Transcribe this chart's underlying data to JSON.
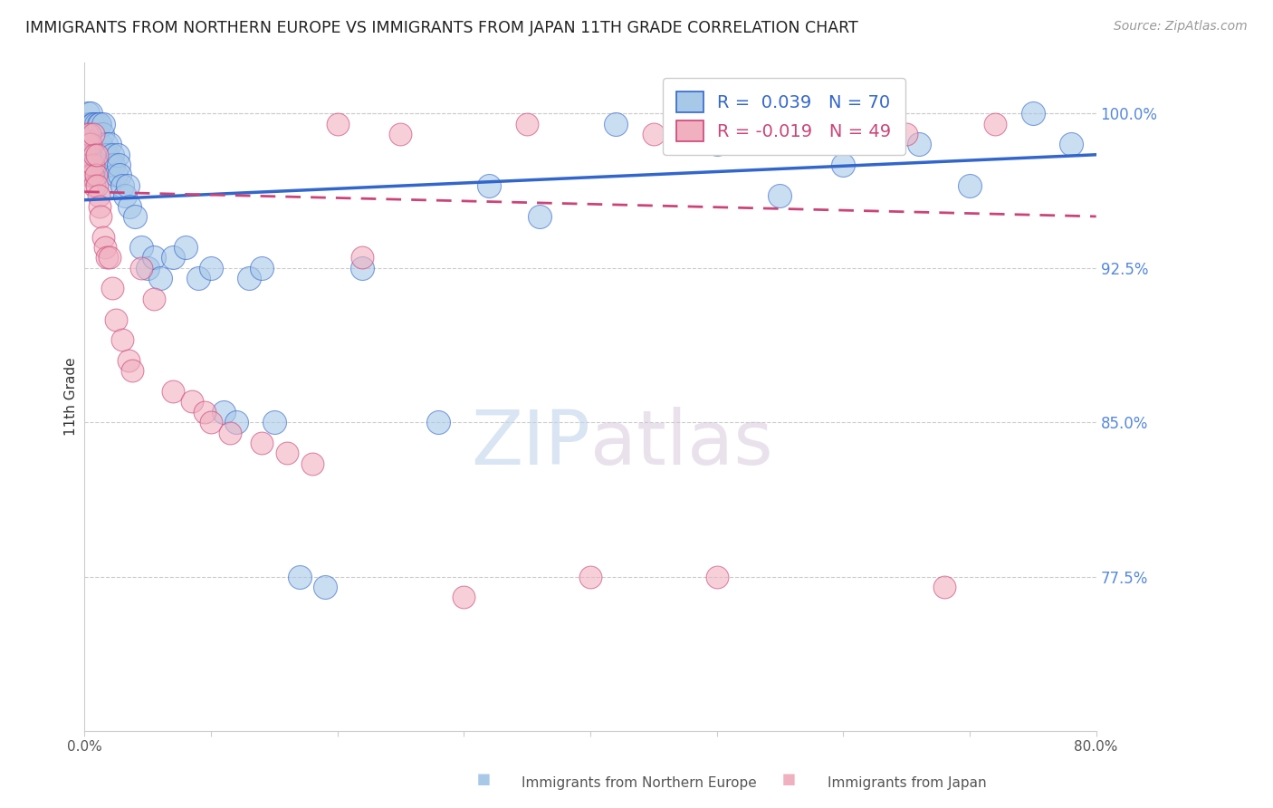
{
  "title": "IMMIGRANTS FROM NORTHERN EUROPE VS IMMIGRANTS FROM JAPAN 11TH GRADE CORRELATION CHART",
  "source": "Source: ZipAtlas.com",
  "ylabel": "11th Grade",
  "yticks": [
    100.0,
    92.5,
    85.0,
    77.5
  ],
  "ymin": 70.0,
  "ymax": 102.5,
  "xmin": 0.0,
  "xmax": 80.0,
  "blue_R": 0.039,
  "blue_N": 70,
  "pink_R": -0.019,
  "pink_N": 49,
  "blue_color": "#a8c8e8",
  "pink_color": "#f0b0c0",
  "trend_blue": "#3366cc",
  "trend_pink": "#cc4477",
  "legend_label_blue": "Immigrants from Northern Europe",
  "legend_label_pink": "Immigrants from Japan",
  "watermark_zip": "ZIP",
  "watermark_atlas": "atlas",
  "blue_x": [
    0.2,
    0.3,
    0.3,
    0.4,
    0.4,
    0.5,
    0.5,
    0.5,
    0.6,
    0.6,
    0.7,
    0.7,
    0.8,
    0.8,
    0.9,
    0.9,
    1.0,
    1.0,
    1.1,
    1.1,
    1.2,
    1.2,
    1.3,
    1.4,
    1.5,
    1.5,
    1.6,
    1.7,
    1.8,
    1.9,
    2.0,
    2.0,
    2.2,
    2.3,
    2.5,
    2.6,
    2.7,
    2.8,
    3.0,
    3.2,
    3.4,
    3.6,
    4.0,
    4.5,
    5.0,
    5.5,
    6.0,
    7.0,
    8.0,
    9.0,
    10.0,
    11.0,
    12.0,
    13.0,
    14.0,
    15.0,
    17.0,
    19.0,
    22.0,
    28.0,
    32.0,
    36.0,
    42.0,
    50.0,
    55.0,
    60.0,
    66.0,
    70.0,
    75.0,
    78.0
  ],
  "blue_y": [
    99.5,
    98.0,
    100.0,
    97.0,
    99.5,
    98.5,
    99.0,
    100.0,
    98.0,
    99.5,
    98.5,
    99.5,
    97.5,
    99.0,
    98.0,
    99.5,
    98.5,
    99.0,
    98.0,
    99.5,
    98.5,
    99.5,
    98.5,
    99.0,
    98.0,
    99.5,
    98.0,
    98.5,
    98.0,
    96.5,
    97.5,
    98.5,
    98.0,
    97.5,
    97.0,
    98.0,
    97.5,
    97.0,
    96.5,
    96.0,
    96.5,
    95.5,
    95.0,
    93.5,
    92.5,
    93.0,
    92.0,
    93.0,
    93.5,
    92.0,
    92.5,
    85.5,
    85.0,
    92.0,
    92.5,
    85.0,
    77.5,
    77.0,
    92.5,
    85.0,
    96.5,
    95.0,
    99.5,
    98.5,
    96.0,
    97.5,
    98.5,
    96.5,
    100.0,
    98.5
  ],
  "pink_x": [
    0.2,
    0.3,
    0.4,
    0.4,
    0.5,
    0.5,
    0.6,
    0.7,
    0.7,
    0.8,
    0.8,
    0.9,
    1.0,
    1.0,
    1.1,
    1.2,
    1.3,
    1.5,
    1.6,
    1.8,
    2.0,
    2.2,
    2.5,
    3.0,
    3.5,
    3.8,
    4.5,
    5.5,
    7.0,
    8.5,
    9.5,
    10.0,
    11.5,
    14.0,
    16.0,
    18.0,
    20.0,
    22.0,
    25.0,
    30.0,
    35.0,
    40.0,
    45.0,
    50.0,
    55.0,
    60.0,
    65.0,
    68.0,
    72.0
  ],
  "pink_y": [
    99.0,
    98.5,
    97.5,
    99.0,
    97.0,
    98.5,
    97.0,
    97.5,
    99.0,
    96.5,
    98.0,
    97.0,
    96.5,
    98.0,
    96.0,
    95.5,
    95.0,
    94.0,
    93.5,
    93.0,
    93.0,
    91.5,
    90.0,
    89.0,
    88.0,
    87.5,
    92.5,
    91.0,
    86.5,
    86.0,
    85.5,
    85.0,
    84.5,
    84.0,
    83.5,
    83.0,
    99.5,
    93.0,
    99.0,
    76.5,
    99.5,
    77.5,
    99.0,
    77.5,
    99.0,
    99.5,
    99.0,
    77.0,
    99.5
  ],
  "trend_blue_x0": 0.0,
  "trend_blue_y0": 95.8,
  "trend_blue_x1": 80.0,
  "trend_blue_y1": 98.0,
  "trend_pink_x0": 0.0,
  "trend_pink_y0": 96.2,
  "trend_pink_x1": 80.0,
  "trend_pink_y1": 95.0
}
